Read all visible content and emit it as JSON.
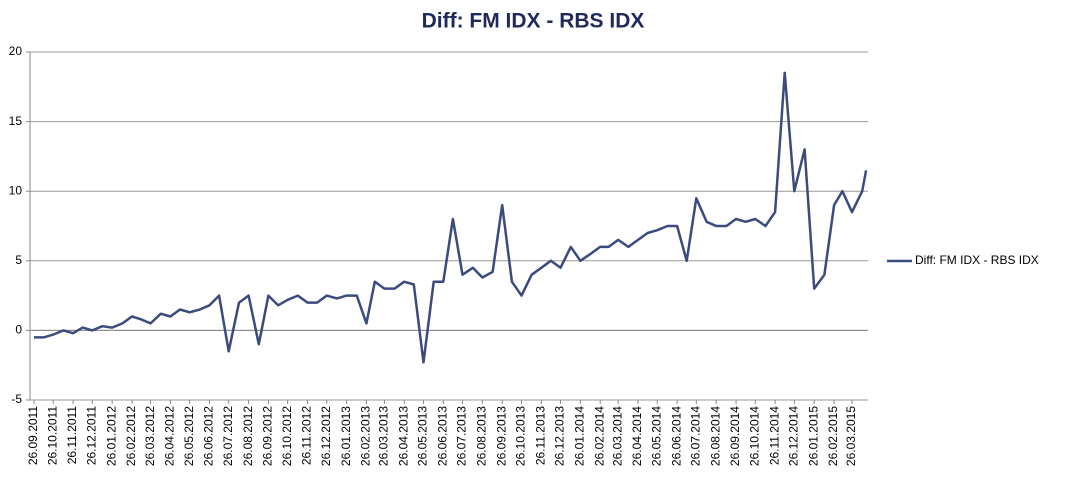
{
  "chart_data": {
    "type": "line",
    "title": "Diff: FM IDX - RBS IDX",
    "x": [
      "26.09.2011",
      "11.10.2011",
      "26.10.2011",
      "11.11.2011",
      "26.11.2011",
      "11.12.2011",
      "26.12.2011",
      "11.01.2012",
      "26.01.2012",
      "11.02.2012",
      "26.02.2012",
      "11.03.2012",
      "26.03.2012",
      "11.04.2012",
      "26.04.2012",
      "11.05.2012",
      "26.05.2012",
      "11.06.2012",
      "26.06.2012",
      "11.07.2012",
      "26.07.2012",
      "11.08.2012",
      "26.08.2012",
      "11.09.2012",
      "26.09.2012",
      "11.10.2012",
      "26.10.2012",
      "11.11.2012",
      "26.11.2012",
      "11.12.2012",
      "26.12.2012",
      "11.01.2013",
      "26.01.2013",
      "11.02.2013",
      "26.02.2013",
      "11.03.2013",
      "26.03.2013",
      "11.04.2013",
      "26.04.2013",
      "11.05.2013",
      "26.05.2013",
      "11.06.2013",
      "26.06.2013",
      "11.07.2013",
      "26.07.2013",
      "11.08.2013",
      "26.08.2013",
      "11.09.2013",
      "26.09.2013",
      "11.10.2013",
      "26.10.2013",
      "11.11.2013",
      "26.11.2013",
      "11.12.2013",
      "26.12.2013",
      "11.01.2014",
      "26.01.2014",
      "11.02.2014",
      "26.02.2014",
      "11.03.2014",
      "26.03.2014",
      "11.04.2014",
      "26.04.2014",
      "11.05.2014",
      "26.05.2014",
      "11.06.2014",
      "26.06.2014",
      "11.07.2014",
      "26.07.2014",
      "11.08.2014",
      "26.08.2014",
      "11.09.2014",
      "26.09.2014",
      "11.10.2014",
      "26.10.2014",
      "11.11.2014",
      "26.11.2014",
      "11.12.2014",
      "26.12.2014",
      "11.01.2015",
      "26.01.2015",
      "11.02.2015",
      "26.02.2015",
      "11.03.2015",
      "26.03.2015",
      "11.04.2015",
      "17.04.2015"
    ],
    "series": [
      {
        "name": "Diff: FM IDX - RBS IDX",
        "color": "#3b4b7d",
        "values": [
          -0.5,
          -0.5,
          -0.3,
          0,
          -0.2,
          0.2,
          0,
          0.3,
          0.2,
          0.5,
          1.0,
          0.8,
          0.5,
          1.2,
          1.0,
          1.5,
          1.3,
          1.5,
          1.8,
          2.5,
          -1.5,
          2.0,
          2.5,
          -1.0,
          2.5,
          1.8,
          2.2,
          2.5,
          2.0,
          2.0,
          2.5,
          2.3,
          2.5,
          2.5,
          0.5,
          3.5,
          3.0,
          3.0,
          3.5,
          3.3,
          -2.3,
          3.5,
          3.5,
          8.0,
          4.0,
          4.5,
          3.8,
          4.2,
          9.0,
          3.5,
          2.5,
          4.0,
          4.5,
          5.0,
          4.5,
          6.0,
          5.0,
          5.5,
          6.0,
          6.0,
          6.5,
          6.0,
          6.5,
          7.0,
          7.2,
          7.5,
          7.5,
          5.0,
          9.5,
          7.8,
          7.5,
          7.5,
          8.0,
          7.8,
          8.0,
          7.5,
          8.5,
          18.5,
          10.0,
          13.0,
          3.0,
          4.0,
          9.0,
          10.0,
          8.5,
          10.0,
          11.5
        ]
      }
    ],
    "xlim": [
      "26.09.2011",
      "20.04.2015"
    ],
    "xticks": [
      "26.09.2011",
      "26.10.2011",
      "26.11.2011",
      "26.12.2011",
      "26.01.2012",
      "26.02.2012",
      "26.03.2012",
      "26.04.2012",
      "26.05.2012",
      "26.06.2012",
      "26.07.2012",
      "26.08.2012",
      "26.09.2012",
      "26.10.2012",
      "26.11.2012",
      "26.12.2012",
      "26.01.2013",
      "26.02.2013",
      "26.03.2013",
      "26.04.2013",
      "26.05.2013",
      "26.06.2013",
      "26.07.2013",
      "26.08.2013",
      "26.09.2013",
      "26.10.2013",
      "26.11.2013",
      "26.12.2013",
      "26.01.2014",
      "26.02.2014",
      "26.03.2014",
      "26.04.2014",
      "26.05.2014",
      "26.06.2014",
      "26.07.2014",
      "26.08.2014",
      "26.09.2014",
      "26.10.2014",
      "26.11.2014",
      "26.12.2014",
      "26.01.2015",
      "26.02.2015",
      "26.03.2015"
    ],
    "ylim": [
      -5,
      20
    ],
    "yticks": [
      -5,
      0,
      5,
      10,
      15,
      20
    ],
    "grid": true,
    "legend": "right"
  }
}
